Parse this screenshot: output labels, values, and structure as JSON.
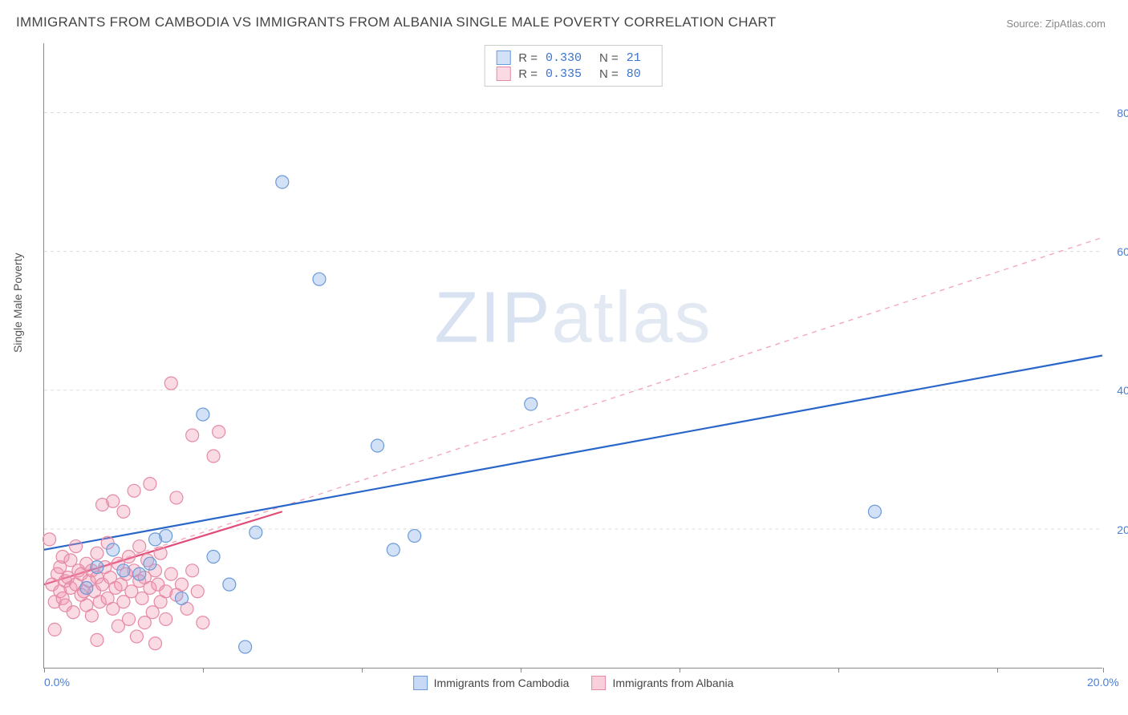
{
  "title": "IMMIGRANTS FROM CAMBODIA VS IMMIGRANTS FROM ALBANIA SINGLE MALE POVERTY CORRELATION CHART",
  "source": "Source: ZipAtlas.com",
  "ylabel": "Single Male Poverty",
  "watermark_a": "ZIP",
  "watermark_b": "atlas",
  "chart": {
    "type": "scatter",
    "background_color": "#ffffff",
    "grid_color": "#dddddd",
    "axis_color": "#888888",
    "tick_label_color": "#4a7dd4",
    "xlim": [
      0,
      20
    ],
    "ylim": [
      0,
      90
    ],
    "xtick_positions": [
      0,
      3,
      6,
      9,
      12,
      15,
      18,
      20
    ],
    "xtick_labels": {
      "0": "0.0%",
      "20": "20.0%"
    },
    "ytick_positions": [
      20,
      40,
      60,
      80
    ],
    "ytick_labels": {
      "20": "20.0%",
      "40": "40.0%",
      "60": "60.0%",
      "80": "80.0%"
    },
    "series": [
      {
        "name": "Immigrants from Cambodia",
        "marker_color_fill": "rgba(130,170,230,0.35)",
        "marker_color_stroke": "#6a9ad8",
        "marker_radius": 8,
        "R": "0.330",
        "N": "21",
        "trend": {
          "type": "solid",
          "color": "#2a66c9",
          "width": 2.2,
          "x1": 0,
          "y1": 17,
          "x2": 20,
          "y2": 45
        },
        "points": [
          [
            0.8,
            11.5
          ],
          [
            1.0,
            14.5
          ],
          [
            1.5,
            14.0
          ],
          [
            1.8,
            13.5
          ],
          [
            2.0,
            15.0
          ],
          [
            2.1,
            18.5
          ],
          [
            2.3,
            19.0
          ],
          [
            2.6,
            10.0
          ],
          [
            3.0,
            36.5
          ],
          [
            3.2,
            16.0
          ],
          [
            3.5,
            12.0
          ],
          [
            3.8,
            3.0
          ],
          [
            4.0,
            19.5
          ],
          [
            4.5,
            70.0
          ],
          [
            5.2,
            56.0
          ],
          [
            6.3,
            32.0
          ],
          [
            6.6,
            17.0
          ],
          [
            7.0,
            19.0
          ],
          [
            9.2,
            38.0
          ],
          [
            15.7,
            22.5
          ],
          [
            1.3,
            17.0
          ]
        ]
      },
      {
        "name": "Immigrants from Albania",
        "marker_color_fill": "rgba(240,150,175,0.35)",
        "marker_color_stroke": "#e58aa6",
        "marker_radius": 8,
        "R": "0.335",
        "N": "80",
        "trend": {
          "type": "dashed",
          "color": "#f2a8bc",
          "width": 1.4,
          "x1": 0,
          "y1": 12,
          "x2": 20,
          "y2": 62
        },
        "trend_solid": {
          "type": "solid",
          "color": "#e04b77",
          "width": 2.2,
          "x1": 0,
          "y1": 12,
          "x2": 4.5,
          "y2": 22.5
        },
        "points": [
          [
            0.1,
            18.5
          ],
          [
            0.15,
            12.0
          ],
          [
            0.2,
            9.5
          ],
          [
            0.25,
            13.5
          ],
          [
            0.3,
            11.0
          ],
          [
            0.3,
            14.5
          ],
          [
            0.35,
            10.0
          ],
          [
            0.35,
            16.0
          ],
          [
            0.4,
            12.5
          ],
          [
            0.4,
            9.0
          ],
          [
            0.45,
            13.0
          ],
          [
            0.5,
            11.5
          ],
          [
            0.5,
            15.5
          ],
          [
            0.55,
            8.0
          ],
          [
            0.6,
            12.0
          ],
          [
            0.6,
            17.5
          ],
          [
            0.65,
            14.0
          ],
          [
            0.7,
            10.5
          ],
          [
            0.7,
            13.5
          ],
          [
            0.75,
            11.0
          ],
          [
            0.8,
            9.0
          ],
          [
            0.8,
            15.0
          ],
          [
            0.85,
            12.5
          ],
          [
            0.9,
            14.0
          ],
          [
            0.9,
            7.5
          ],
          [
            0.95,
            11.0
          ],
          [
            1.0,
            13.0
          ],
          [
            1.0,
            16.5
          ],
          [
            1.05,
            9.5
          ],
          [
            1.1,
            12.0
          ],
          [
            1.1,
            23.5
          ],
          [
            1.15,
            14.5
          ],
          [
            1.2,
            10.0
          ],
          [
            1.2,
            18.0
          ],
          [
            1.25,
            13.0
          ],
          [
            1.3,
            24.0
          ],
          [
            1.3,
            8.5
          ],
          [
            1.35,
            11.5
          ],
          [
            1.4,
            15.0
          ],
          [
            1.4,
            6.0
          ],
          [
            1.45,
            12.0
          ],
          [
            1.5,
            9.5
          ],
          [
            1.5,
            22.5
          ],
          [
            1.55,
            13.5
          ],
          [
            1.6,
            7.0
          ],
          [
            1.6,
            16.0
          ],
          [
            1.65,
            11.0
          ],
          [
            1.7,
            14.0
          ],
          [
            1.7,
            25.5
          ],
          [
            1.75,
            4.5
          ],
          [
            1.8,
            12.5
          ],
          [
            1.8,
            17.5
          ],
          [
            1.85,
            10.0
          ],
          [
            1.9,
            13.0
          ],
          [
            1.9,
            6.5
          ],
          [
            1.95,
            15.5
          ],
          [
            2.0,
            11.5
          ],
          [
            2.0,
            26.5
          ],
          [
            2.05,
            8.0
          ],
          [
            2.1,
            14.0
          ],
          [
            2.1,
            3.5
          ],
          [
            2.15,
            12.0
          ],
          [
            2.2,
            9.5
          ],
          [
            2.2,
            16.5
          ],
          [
            2.3,
            11.0
          ],
          [
            2.3,
            7.0
          ],
          [
            2.4,
            13.5
          ],
          [
            2.5,
            10.5
          ],
          [
            2.5,
            24.5
          ],
          [
            2.6,
            12.0
          ],
          [
            2.7,
            8.5
          ],
          [
            2.8,
            33.5
          ],
          [
            2.8,
            14.0
          ],
          [
            2.9,
            11.0
          ],
          [
            3.0,
            6.5
          ],
          [
            3.2,
            30.5
          ],
          [
            3.3,
            34.0
          ],
          [
            2.4,
            41.0
          ],
          [
            0.2,
            5.5
          ],
          [
            1.0,
            4.0
          ]
        ]
      }
    ],
    "legend_bottom": [
      {
        "label": "Immigrants from Cambodia",
        "fill": "rgba(130,170,230,0.45)",
        "stroke": "#6a9ad8"
      },
      {
        "label": "Immigrants from Albania",
        "fill": "rgba(240,150,175,0.45)",
        "stroke": "#e58aa6"
      }
    ]
  }
}
